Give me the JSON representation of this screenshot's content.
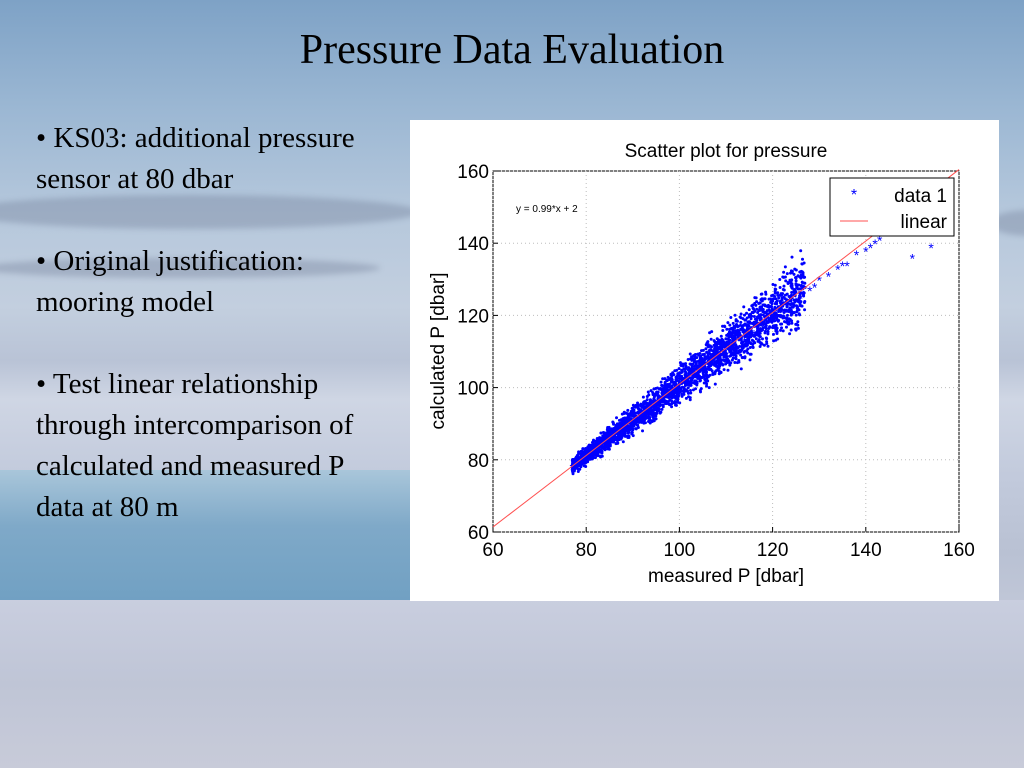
{
  "slide": {
    "title": "Pressure Data Evaluation",
    "bullets": [
      "• KS03: additional pressure sensor at 80 dbar",
      "• Original justification: mooring model",
      "• Test linear relationship through intercomparison of calculated and measured  P data at 80 m"
    ]
  },
  "chart_data": {
    "type": "scatter",
    "title": "Scatter plot for pressure",
    "xlabel": "measured P [dbar]",
    "ylabel": "calculated P [dbar]",
    "xlim": [
      60,
      160
    ],
    "ylim": [
      60,
      160
    ],
    "xticks": [
      60,
      80,
      100,
      120,
      140,
      160
    ],
    "yticks": [
      60,
      80,
      100,
      120,
      140,
      160
    ],
    "grid": true,
    "legend_position": "top-right",
    "annotation": "y = 0.99*x + 2",
    "series": [
      {
        "name": "data 1",
        "color": "#0000ff",
        "marker": "*",
        "x": [
          77,
          78,
          80,
          82,
          84,
          86,
          88,
          90,
          92,
          94,
          96,
          98,
          100,
          102,
          104,
          106,
          108,
          110,
          112,
          114,
          116,
          118,
          120,
          122,
          124,
          125,
          126,
          128,
          129,
          130,
          132,
          134,
          135,
          136,
          138,
          140,
          141,
          142,
          143,
          150,
          154
        ],
        "y": [
          78,
          79,
          80,
          81,
          83,
          85,
          87,
          89,
          91,
          93,
          95,
          97,
          99,
          101,
          103,
          105,
          107,
          109,
          111,
          113,
          115,
          117,
          119,
          121,
          123,
          124,
          125,
          127,
          128,
          130,
          131,
          133,
          134,
          134,
          137,
          138,
          139,
          140,
          141,
          136,
          139
        ]
      },
      {
        "name": "linear",
        "color": "#ff5050",
        "type": "line",
        "x": [
          60,
          160
        ],
        "y": [
          61.4,
          160.4
        ]
      }
    ]
  }
}
